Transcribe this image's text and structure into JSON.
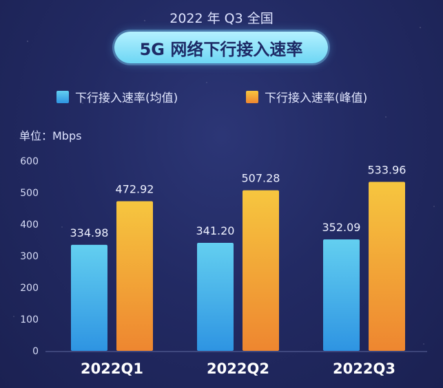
{
  "header": {
    "top_title": "2022 年 Q3 全国",
    "main_title": "5G 网络下行接入速率"
  },
  "legend": {
    "avg_label": "下行接入速率(均值)",
    "peak_label": "下行接入速率(峰值)"
  },
  "unit_label": "单位：Mbps",
  "colors": {
    "avg_top": "#63cff0",
    "avg_bottom": "#2e94e2",
    "peak_top": "#f6c63f",
    "peak_bottom": "#ee8630",
    "pill": "#7fdcf6"
  },
  "chart_data": {
    "type": "bar",
    "categories": [
      "2022Q1",
      "2022Q2",
      "2022Q3"
    ],
    "series": [
      {
        "name": "下行接入速率(均值)",
        "values": [
          334.98,
          341.2,
          352.09
        ]
      },
      {
        "name": "下行接入速率(峰值)",
        "values": [
          472.92,
          507.28,
          533.96
        ]
      }
    ],
    "value_labels": [
      [
        "334.98",
        "341.20",
        "352.09"
      ],
      [
        "472.92",
        "507.28",
        "533.96"
      ]
    ],
    "yticks": [
      "0",
      "100",
      "200",
      "300",
      "400",
      "500",
      "600"
    ],
    "ylim": [
      0,
      600
    ],
    "ylabel": "单位：Mbps",
    "title": "5G 网络下行接入速率",
    "grid": false,
    "legend_position": "top"
  }
}
